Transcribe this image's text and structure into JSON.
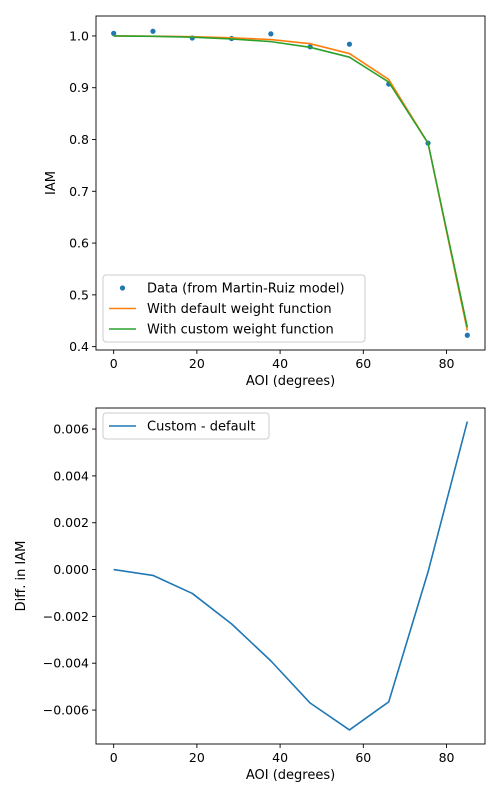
{
  "chart_data": [
    {
      "type": "line",
      "xlabel": "AOI (degrees)",
      "ylabel": "IAM",
      "xlim": [
        -4.25,
        89.25
      ],
      "ylim": [
        0.3935,
        1.0385
      ],
      "xticks": [
        0,
        20,
        40,
        60,
        80
      ],
      "yticks": [
        0.4,
        0.5,
        0.6,
        0.7,
        0.8,
        0.9,
        1.0
      ],
      "ytick_labels": [
        "0.4",
        "0.5",
        "0.6",
        "0.7",
        "0.8",
        "0.9",
        "1.0"
      ],
      "grid": false,
      "legend_position": "lower-left",
      "series": [
        {
          "name": "Data (from Martin-Ruiz model)",
          "kind": "scatter",
          "color": "#1f77b4",
          "x": [
            0,
            9.44,
            18.89,
            28.33,
            37.78,
            47.22,
            56.67,
            66.11,
            75.56,
            85
          ],
          "y": [
            1.005,
            1.009,
            0.996,
            0.995,
            1.004,
            0.979,
            0.984,
            0.907,
            0.793,
            0.422
          ]
        },
        {
          "name": "With default weight function",
          "kind": "line",
          "color": "#ff7f0e",
          "x": [
            0,
            9.44,
            18.89,
            28.33,
            37.78,
            47.22,
            56.67,
            66.11,
            75.56,
            85
          ],
          "y": [
            1.0,
            0.9995,
            0.9985,
            0.9965,
            0.993,
            0.985,
            0.966,
            0.916,
            0.793,
            0.431
          ]
        },
        {
          "name": "With custom weight function",
          "kind": "line",
          "color": "#2ca02c",
          "x": [
            0,
            9.44,
            18.89,
            28.33,
            37.78,
            47.22,
            56.67,
            66.11,
            75.56,
            85
          ],
          "y": [
            1.0,
            0.9992,
            0.9975,
            0.9942,
            0.989,
            0.978,
            0.959,
            0.911,
            0.793,
            0.437
          ]
        }
      ]
    },
    {
      "type": "line",
      "xlabel": "AOI (degrees)",
      "ylabel": "Diff. in IAM",
      "xlim": [
        -4.25,
        89.25
      ],
      "ylim": [
        -0.00745,
        0.0069
      ],
      "xticks": [
        0,
        20,
        40,
        60,
        80
      ],
      "yticks": [
        -0.006,
        -0.004,
        -0.002,
        0.0,
        0.002,
        0.004,
        0.006
      ],
      "ytick_labels": [
        "−0.006",
        "−0.004",
        "−0.002",
        "0.000",
        "0.002",
        "0.004",
        "0.006"
      ],
      "grid": false,
      "legend_position": "upper-left",
      "series": [
        {
          "name": "Custom - default",
          "kind": "line",
          "color": "#1f77b4",
          "x": [
            0,
            9.44,
            18.89,
            28.33,
            37.78,
            47.22,
            56.67,
            66.11,
            75.56,
            85
          ],
          "y": [
            0.0,
            -0.00025,
            -0.00102,
            -0.00232,
            -0.0039,
            -0.0057,
            -0.00685,
            -0.00565,
            -0.0001,
            0.00632
          ]
        }
      ]
    }
  ]
}
